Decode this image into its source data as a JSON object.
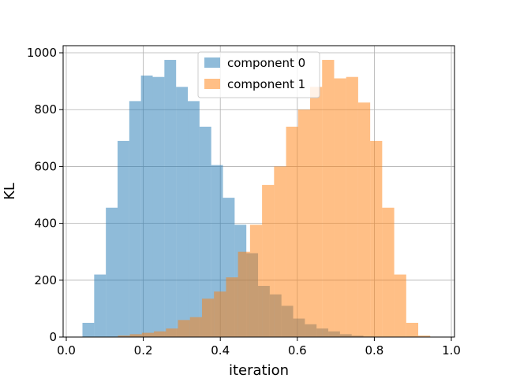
{
  "chart_data": {
    "type": "histogram",
    "xlabel": "iteration",
    "ylabel": "KL",
    "xlim": [
      0.0,
      1.0
    ],
    "ylim": [
      0,
      1025
    ],
    "xticks": [
      "0.0",
      "0.2",
      "0.4",
      "0.6",
      "0.8",
      "1.0"
    ],
    "xtick_values": [
      0.0,
      0.2,
      0.4,
      0.6,
      0.8,
      1.0
    ],
    "yticks": [
      "0",
      "200",
      "400",
      "600",
      "800",
      "1000"
    ],
    "ytick_values": [
      0,
      200,
      400,
      600,
      800,
      1000
    ],
    "grid": true,
    "legend_position": "top-center",
    "series": [
      {
        "name": "component 0",
        "color": "#1f77b4",
        "alpha": 0.5,
        "bin_edges": [
          0.042,
          0.0724,
          0.1028,
          0.1332,
          0.1636,
          0.194,
          0.2244,
          0.2548,
          0.2852,
          0.3156,
          0.346,
          0.3764,
          0.4068,
          0.4372,
          0.4676,
          0.498,
          0.5284,
          0.5588,
          0.5892,
          0.6196,
          0.65,
          0.6804,
          0.7108,
          0.7412,
          0.7716,
          0.802,
          0.8324
        ],
        "counts": [
          50,
          220,
          455,
          690,
          830,
          920,
          915,
          975,
          880,
          830,
          740,
          605,
          490,
          395,
          295,
          180,
          150,
          110,
          65,
          45,
          30,
          20,
          10,
          5,
          2,
          1
        ]
      },
      {
        "name": "component 1",
        "color": "#ff7f0e",
        "alpha": 0.5,
        "bin_edges": [
          0.134,
          0.1652,
          0.1964,
          0.2276,
          0.2588,
          0.29,
          0.3212,
          0.3524,
          0.3836,
          0.4148,
          0.446,
          0.4772,
          0.5084,
          0.5396,
          0.5708,
          0.602,
          0.6332,
          0.6644,
          0.6956,
          0.7268,
          0.758,
          0.7892,
          0.8204,
          0.8516,
          0.8828,
          0.914,
          0.9452
        ],
        "counts": [
          5,
          10,
          15,
          20,
          30,
          60,
          70,
          135,
          160,
          210,
          300,
          395,
          535,
          600,
          740,
          800,
          880,
          975,
          910,
          915,
          825,
          690,
          455,
          220,
          50,
          5
        ]
      }
    ]
  }
}
